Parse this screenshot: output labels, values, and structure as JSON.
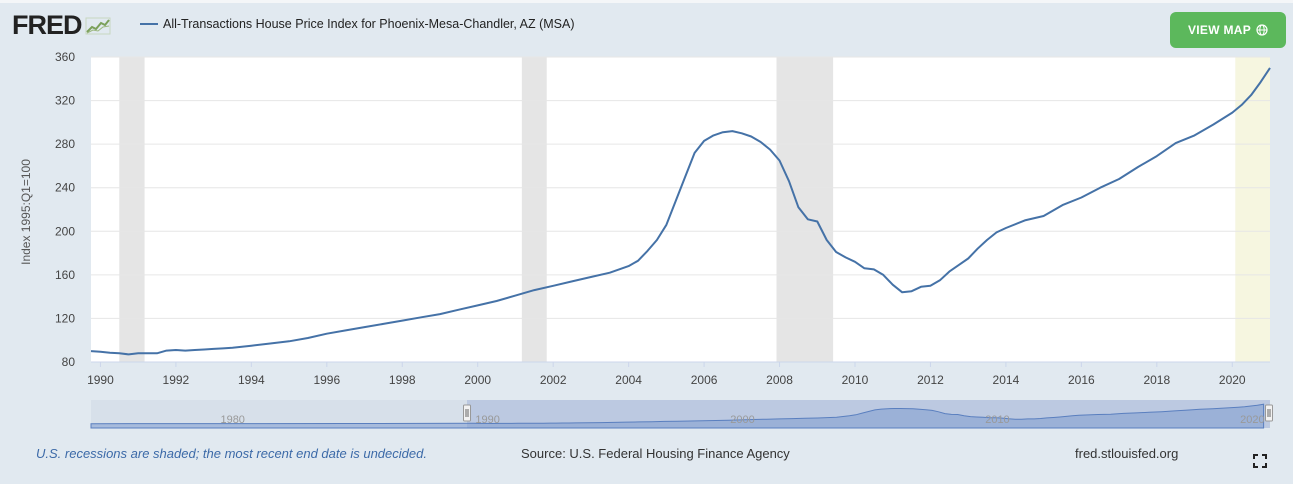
{
  "header": {
    "logo_text": "FRED",
    "series_title": "All-Transactions House Price Index for Phoenix-Mesa-Chandler, AZ (MSA)",
    "view_map_label": "VIEW MAP"
  },
  "footer": {
    "recession_note": "U.S. recessions are shaded; the most recent end date is undecided.",
    "source": "Source: U.S. Federal Housing Finance Agency",
    "site": "fred.stlouisfed.org"
  },
  "navigator": {
    "tick_labels": [
      "1980",
      "1990",
      "2000",
      "2010",
      "2020"
    ]
  },
  "colors": {
    "line": "#4572a7",
    "recession": "#e5e5e5",
    "projection": "#f6f6e0",
    "button": "#5cb85c",
    "frame": "#e1e9f0"
  },
  "chart_data": {
    "type": "line",
    "title": "All-Transactions House Price Index for Phoenix-Mesa-Chandler, AZ (MSA)",
    "ylabel": "Index 1995:Q1=100",
    "xlabel": "",
    "xlim": [
      1989.75,
      2021.0
    ],
    "ylim": [
      80,
      360
    ],
    "x_ticks": [
      1990,
      1992,
      1994,
      1996,
      1998,
      2000,
      2002,
      2004,
      2006,
      2008,
      2010,
      2012,
      2014,
      2016,
      2018,
      2020
    ],
    "y_ticks": [
      80,
      120,
      160,
      200,
      240,
      280,
      320,
      360
    ],
    "grid": "horizontal",
    "recessions": [
      [
        1990.5,
        1991.17
      ],
      [
        2001.17,
        2001.83
      ],
      [
        2007.92,
        2009.42
      ],
      [
        2020.08,
        2021.0
      ]
    ],
    "series": [
      {
        "name": "All-Transactions House Price Index for Phoenix-Mesa-Chandler, AZ (MSA)",
        "points": [
          [
            1989.75,
            90
          ],
          [
            1990.0,
            89.5
          ],
          [
            1990.25,
            88.5
          ],
          [
            1990.5,
            88
          ],
          [
            1990.75,
            87
          ],
          [
            1991.0,
            88
          ],
          [
            1991.25,
            88
          ],
          [
            1991.5,
            88
          ],
          [
            1991.75,
            90.5
          ],
          [
            1992.0,
            91
          ],
          [
            1992.25,
            90.5
          ],
          [
            1992.5,
            91
          ],
          [
            1992.75,
            91.5
          ],
          [
            1993.0,
            92
          ],
          [
            1993.25,
            92.5
          ],
          [
            1993.5,
            93
          ],
          [
            1993.75,
            94
          ],
          [
            1994.0,
            95
          ],
          [
            1994.5,
            97
          ],
          [
            1995.0,
            99
          ],
          [
            1995.5,
            102
          ],
          [
            1996.0,
            106
          ],
          [
            1996.5,
            109
          ],
          [
            1997.0,
            112
          ],
          [
            1997.5,
            115
          ],
          [
            1998.0,
            118
          ],
          [
            1998.5,
            121
          ],
          [
            1999.0,
            124
          ],
          [
            1999.5,
            128
          ],
          [
            2000.0,
            132
          ],
          [
            2000.5,
            136
          ],
          [
            2001.0,
            141
          ],
          [
            2001.5,
            146
          ],
          [
            2002.0,
            150
          ],
          [
            2002.5,
            154
          ],
          [
            2003.0,
            158
          ],
          [
            2003.5,
            162
          ],
          [
            2004.0,
            168
          ],
          [
            2004.25,
            173
          ],
          [
            2004.5,
            182
          ],
          [
            2004.75,
            192
          ],
          [
            2005.0,
            206
          ],
          [
            2005.25,
            228
          ],
          [
            2005.5,
            250
          ],
          [
            2005.75,
            272
          ],
          [
            2006.0,
            283
          ],
          [
            2006.25,
            288
          ],
          [
            2006.5,
            291
          ],
          [
            2006.75,
            292
          ],
          [
            2007.0,
            290
          ],
          [
            2007.25,
            287
          ],
          [
            2007.5,
            282
          ],
          [
            2007.75,
            275
          ],
          [
            2008.0,
            265
          ],
          [
            2008.25,
            246
          ],
          [
            2008.5,
            222
          ],
          [
            2008.75,
            211
          ],
          [
            2009.0,
            209
          ],
          [
            2009.25,
            192
          ],
          [
            2009.5,
            181
          ],
          [
            2009.75,
            176
          ],
          [
            2010.0,
            172
          ],
          [
            2010.25,
            166
          ],
          [
            2010.5,
            165
          ],
          [
            2010.75,
            160
          ],
          [
            2011.0,
            151
          ],
          [
            2011.25,
            144
          ],
          [
            2011.5,
            145
          ],
          [
            2011.75,
            149
          ],
          [
            2012.0,
            150
          ],
          [
            2012.25,
            155
          ],
          [
            2012.5,
            163
          ],
          [
            2012.75,
            169
          ],
          [
            2013.0,
            175
          ],
          [
            2013.25,
            184
          ],
          [
            2013.5,
            192
          ],
          [
            2013.75,
            199
          ],
          [
            2014.0,
            203
          ],
          [
            2014.5,
            210
          ],
          [
            2015.0,
            214
          ],
          [
            2015.5,
            224
          ],
          [
            2016.0,
            231
          ],
          [
            2016.5,
            240
          ],
          [
            2017.0,
            248
          ],
          [
            2017.5,
            259
          ],
          [
            2018.0,
            269
          ],
          [
            2018.5,
            281
          ],
          [
            2019.0,
            288
          ],
          [
            2019.5,
            298
          ],
          [
            2020.0,
            309
          ],
          [
            2020.25,
            316
          ],
          [
            2020.5,
            325
          ],
          [
            2020.75,
            337
          ],
          [
            2021.0,
            350
          ]
        ]
      }
    ]
  }
}
